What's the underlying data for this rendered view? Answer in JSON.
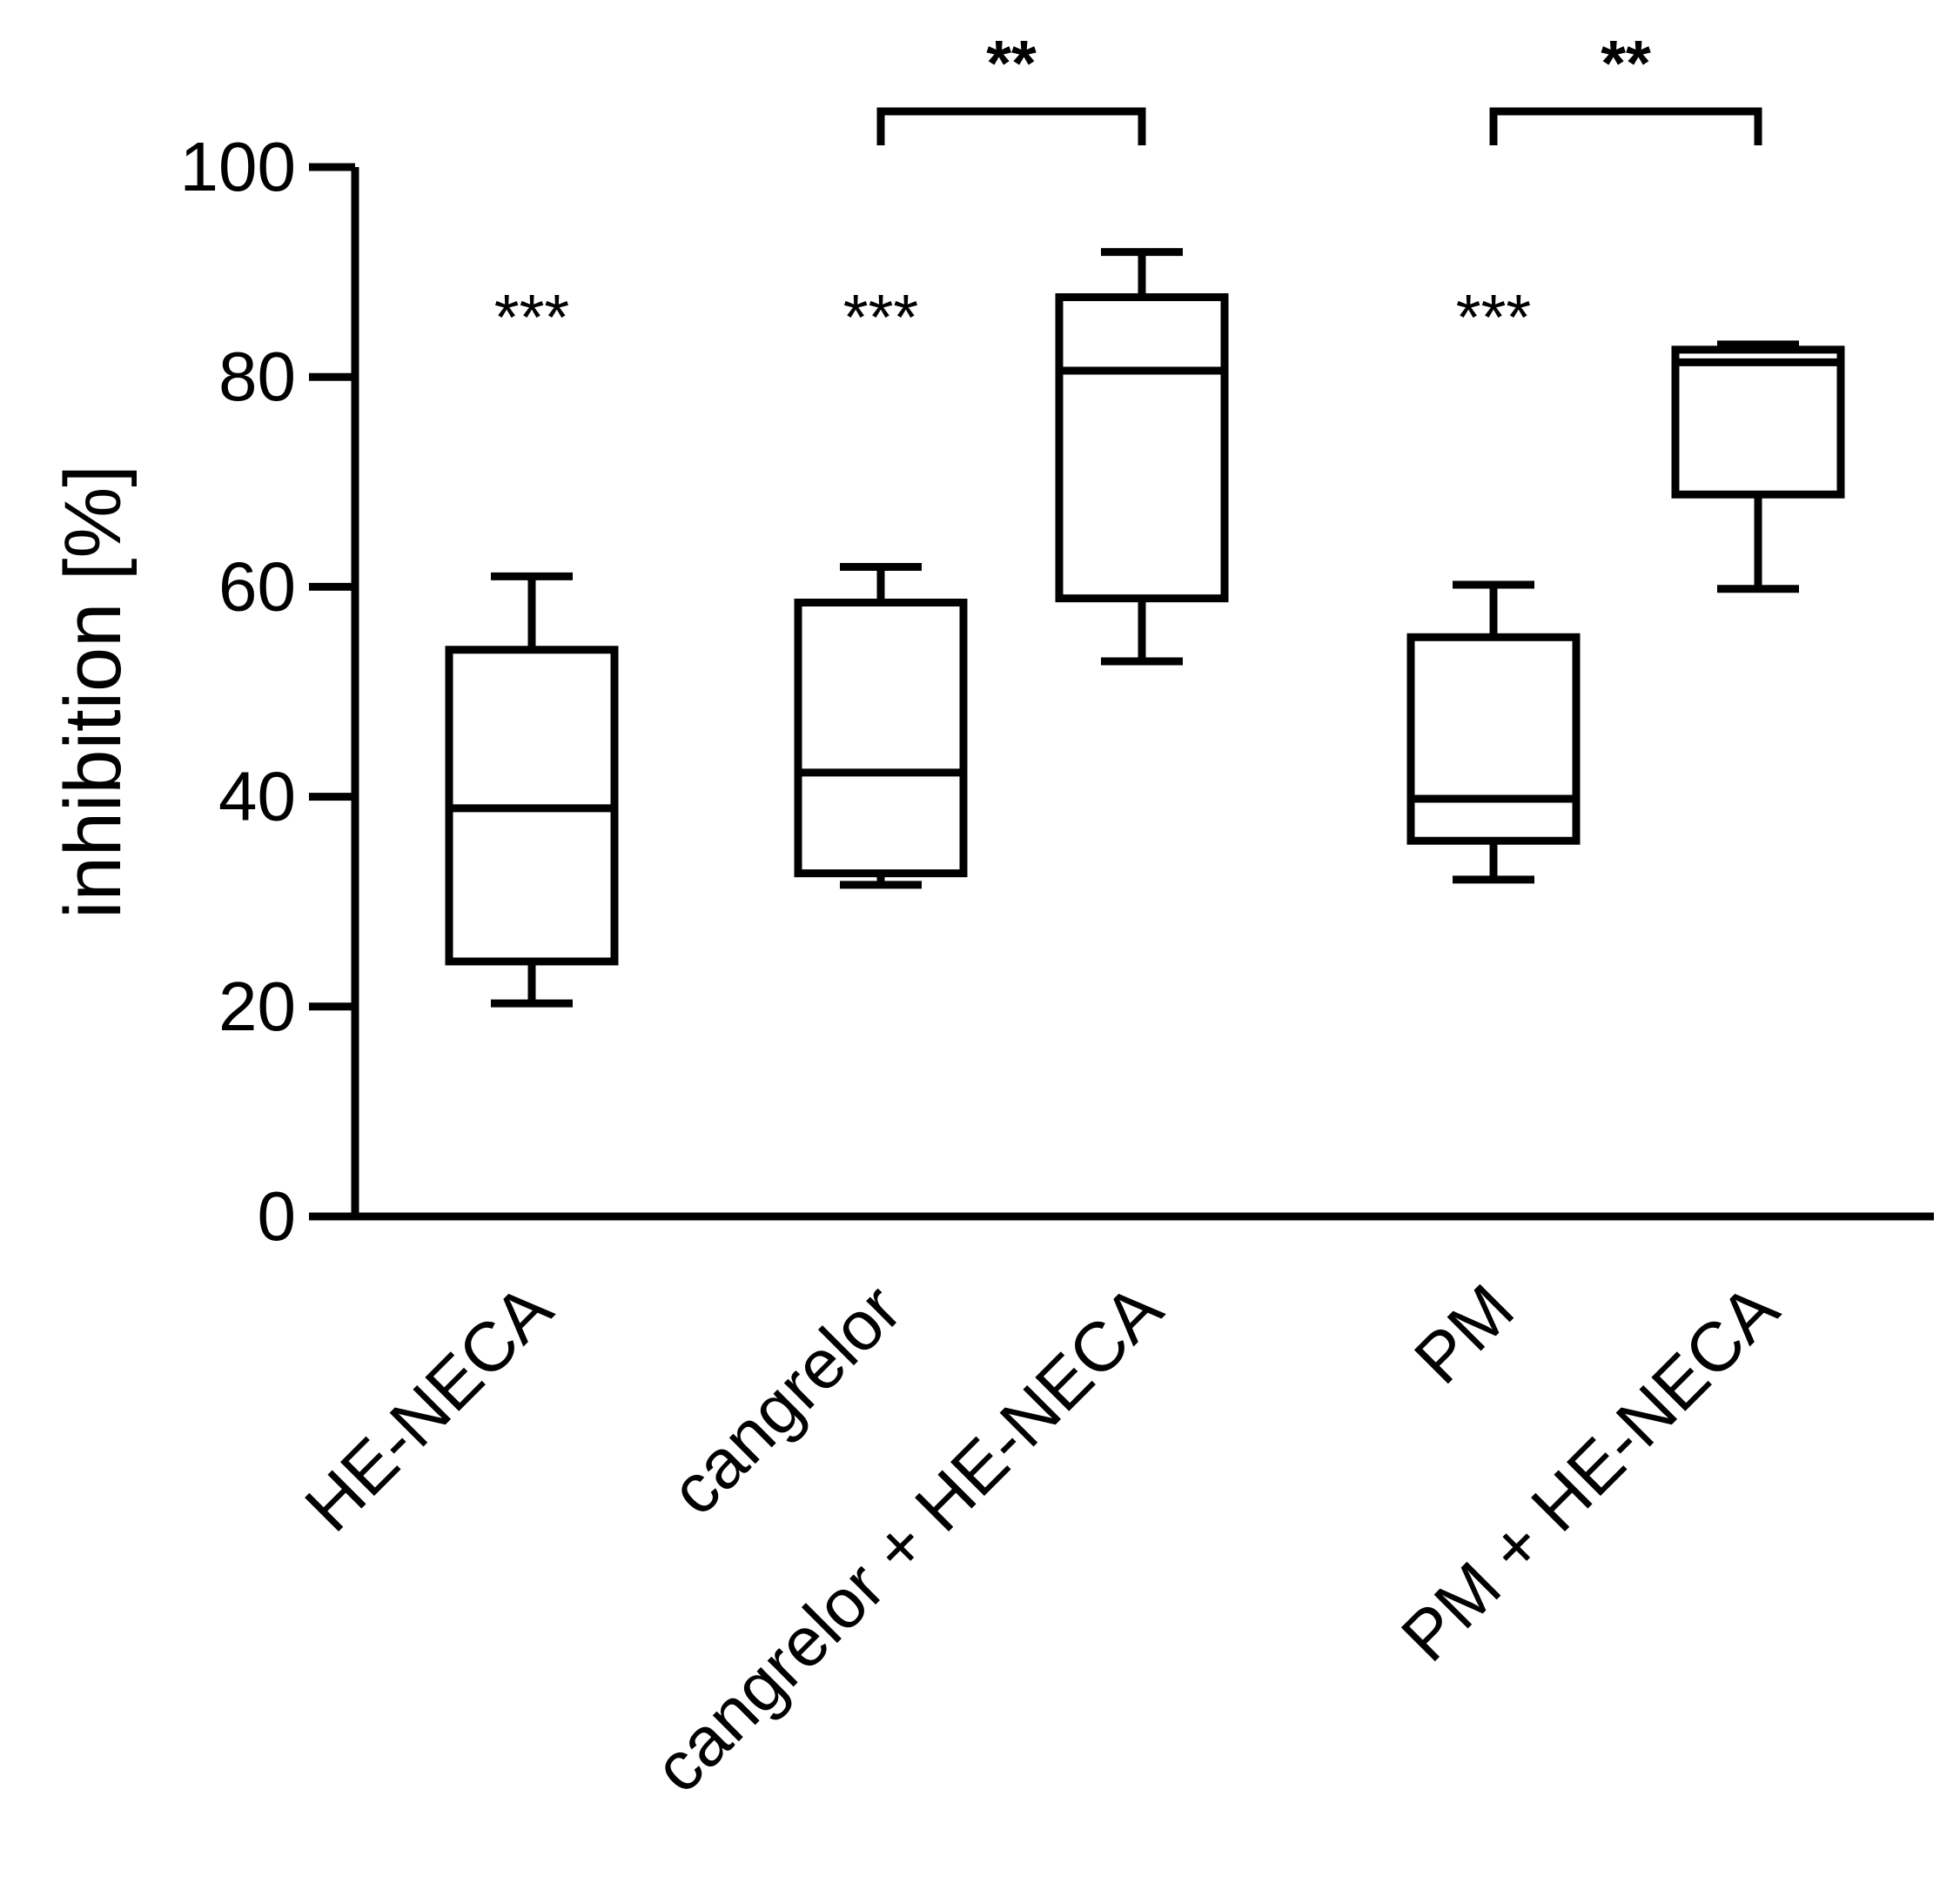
{
  "chart_data": {
    "type": "box",
    "title": "",
    "xlabel": "",
    "ylabel": "inhibition [%]",
    "ylim": [
      0,
      100
    ],
    "yticks": [
      0,
      20,
      40,
      60,
      80,
      100
    ],
    "grid": false,
    "legend": "none",
    "groups": [
      {
        "label": "HE-NECA",
        "min": 20.3,
        "q1": 24.3,
        "median": 38.9,
        "q3": 54.0,
        "max": 61.0,
        "significance": "***"
      },
      {
        "label": "cangrelor",
        "min": 31.6,
        "q1": 32.7,
        "median": 42.3,
        "q3": 58.5,
        "max": 61.9,
        "significance": "***"
      },
      {
        "label": "cangrelor + HE-NECA",
        "min": 52.9,
        "q1": 58.9,
        "median": 80.6,
        "q3": 87.6,
        "max": 91.9,
        "significance": ""
      },
      {
        "label": "PM",
        "min": 32.1,
        "q1": 35.8,
        "median": 39.8,
        "q3": 55.2,
        "max": 60.2,
        "significance": "***"
      },
      {
        "label": "PM + HE-NECA",
        "min": 59.8,
        "q1": 68.8,
        "median": 81.4,
        "q3": 82.6,
        "max": 83.1,
        "significance": ""
      }
    ],
    "comparisons": [
      {
        "from": "cangrelor",
        "to": "cangrelor + HE-NECA",
        "label": "**"
      },
      {
        "from": "PM",
        "to": "PM + HE-NECA",
        "label": "**"
      }
    ]
  },
  "colors": {
    "stroke": "#000000",
    "fill": "#ffffff"
  }
}
